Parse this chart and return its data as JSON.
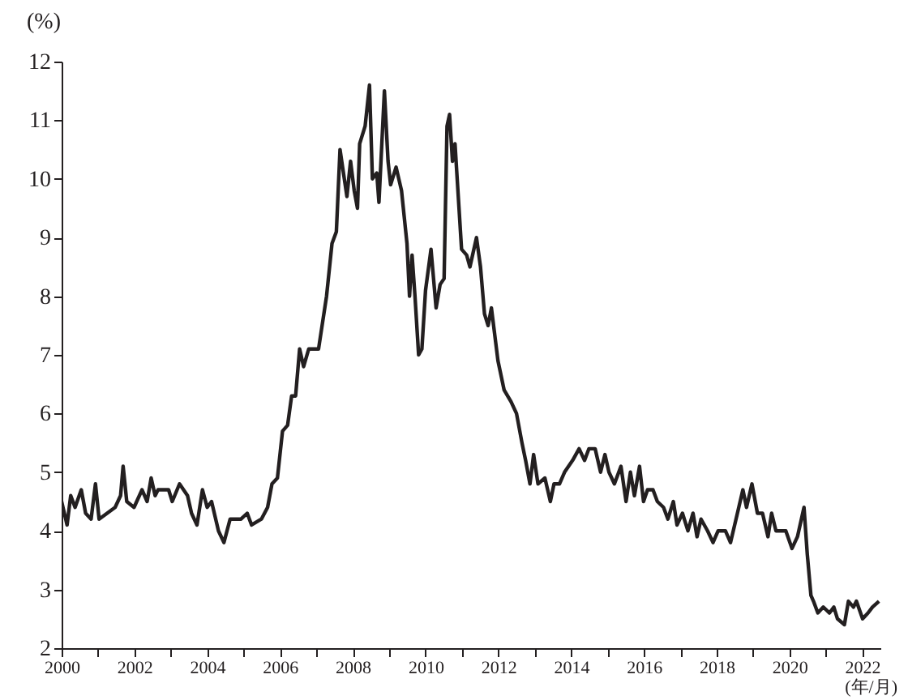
{
  "chart_data": {
    "type": "line",
    "xlabel": "(年/月)",
    "ylabel": "(%)",
    "xlim": [
      2000,
      2022.5
    ],
    "ylim": [
      2,
      12
    ],
    "xticks": [
      2000,
      {
        "value": 2001,
        "label": null
      },
      2002,
      {
        "value": 2003,
        "label": null
      },
      2004,
      {
        "value": 2005,
        "label": null
      },
      2006,
      {
        "value": 2007,
        "label": null
      },
      2008,
      {
        "value": 2009,
        "label": null
      },
      2010,
      {
        "value": 2011,
        "label": null
      },
      2012,
      {
        "value": 2013,
        "label": null
      },
      2014,
      {
        "value": 2015,
        "label": null
      },
      2016,
      {
        "value": 2017,
        "label": null
      },
      2018,
      {
        "value": 2019,
        "label": null
      },
      2020,
      {
        "value": 2021,
        "label": null
      },
      2022
    ],
    "yticks": [
      2,
      3,
      4,
      5,
      6,
      7,
      8,
      9,
      10,
      11,
      12
    ],
    "grid": false,
    "marker": "none",
    "line_style": "solid",
    "series": [
      {
        "color": "#231f20",
        "x": [
          2000.0,
          2000.15,
          2000.25,
          2000.37,
          2000.54,
          2000.66,
          2000.81,
          2000.93,
          2001.03,
          2001.25,
          2001.47,
          2001.62,
          2001.69,
          2001.79,
          2001.99,
          2002.21,
          2002.35,
          2002.46,
          2002.57,
          2002.65,
          2002.94,
          2003.04,
          2003.24,
          2003.46,
          2003.57,
          2003.72,
          2003.87,
          2004.0,
          2004.12,
          2004.31,
          2004.46,
          2004.63,
          2004.93,
          2005.1,
          2005.22,
          2005.49,
          2005.66,
          2005.78,
          2005.93,
          2006.07,
          2006.21,
          2006.32,
          2006.43,
          2006.54,
          2006.65,
          2006.79,
          2007.06,
          2007.28,
          2007.43,
          2007.55,
          2007.65,
          2007.84,
          2007.94,
          2008.04,
          2008.13,
          2008.19,
          2008.34,
          2008.46,
          2008.54,
          2008.66,
          2008.72,
          2008.87,
          2008.97,
          2009.04,
          2009.19,
          2009.34,
          2009.49,
          2009.56,
          2009.63,
          2009.71,
          2009.81,
          2009.9,
          2010.0,
          2010.15,
          2010.29,
          2010.4,
          2010.51,
          2010.59,
          2010.66,
          2010.74,
          2010.81,
          2010.99,
          2011.13,
          2011.22,
          2011.4,
          2011.51,
          2011.62,
          2011.72,
          2011.81,
          2011.99,
          2012.16,
          2012.35,
          2012.5,
          2012.65,
          2012.75,
          2012.87,
          2012.97,
          2013.09,
          2013.28,
          2013.43,
          2013.53,
          2013.68,
          2013.82,
          2014.04,
          2014.22,
          2014.37,
          2014.49,
          2014.66,
          2014.81,
          2014.93,
          2015.04,
          2015.19,
          2015.37,
          2015.51,
          2015.63,
          2015.74,
          2015.88,
          2015.99,
          2016.1,
          2016.25,
          2016.37,
          2016.54,
          2016.66,
          2016.81,
          2016.91,
          2017.06,
          2017.21,
          2017.35,
          2017.46,
          2017.57,
          2017.75,
          2017.9,
          2018.04,
          2018.24,
          2018.38,
          2018.57,
          2018.72,
          2018.82,
          2018.97,
          2019.12,
          2019.26,
          2019.41,
          2019.51,
          2019.63,
          2019.9,
          2020.07,
          2020.22,
          2020.4,
          2020.49,
          2020.59,
          2020.66,
          2020.78,
          2020.93,
          2021.1,
          2021.22,
          2021.32,
          2021.51,
          2021.62,
          2021.76,
          2021.84,
          2022.01,
          2022.16,
          2022.28,
          2022.46
        ],
        "values": [
          4.5,
          4.1,
          4.6,
          4.4,
          4.7,
          4.3,
          4.2,
          4.8,
          4.2,
          4.3,
          4.4,
          4.6,
          5.1,
          4.5,
          4.4,
          4.7,
          4.5,
          4.9,
          4.6,
          4.7,
          4.7,
          4.5,
          4.8,
          4.6,
          4.3,
          4.1,
          4.7,
          4.4,
          4.5,
          4.0,
          3.8,
          4.2,
          4.2,
          4.3,
          4.1,
          4.2,
          4.4,
          4.8,
          4.9,
          5.7,
          5.8,
          6.3,
          6.3,
          7.1,
          6.8,
          7.1,
          7.1,
          8.0,
          8.9,
          9.1,
          10.5,
          9.7,
          10.3,
          9.8,
          9.5,
          10.6,
          10.9,
          11.6,
          10.0,
          10.1,
          9.6,
          11.5,
          10.3,
          9.9,
          10.2,
          9.8,
          8.9,
          8.0,
          8.7,
          8.0,
          7.0,
          7.1,
          8.1,
          8.8,
          7.8,
          8.2,
          8.3,
          10.9,
          11.1,
          10.3,
          10.6,
          8.8,
          8.7,
          8.5,
          9.0,
          8.5,
          7.7,
          7.5,
          7.8,
          6.9,
          6.4,
          6.2,
          6.0,
          5.5,
          5.2,
          4.8,
          5.3,
          4.8,
          4.9,
          4.5,
          4.8,
          4.8,
          5.0,
          5.2,
          5.4,
          5.2,
          5.4,
          5.4,
          5.0,
          5.3,
          5.0,
          4.8,
          5.1,
          4.5,
          5.0,
          4.6,
          5.1,
          4.5,
          4.7,
          4.7,
          4.5,
          4.4,
          4.2,
          4.5,
          4.1,
          4.3,
          4.0,
          4.3,
          3.9,
          4.2,
          4.0,
          3.8,
          4.0,
          4.0,
          3.8,
          4.3,
          4.7,
          4.4,
          4.8,
          4.3,
          4.3,
          3.9,
          4.3,
          4.0,
          4.0,
          3.7,
          3.9,
          4.4,
          3.6,
          2.9,
          2.8,
          2.6,
          2.7,
          2.6,
          2.7,
          2.5,
          2.4,
          2.8,
          2.7,
          2.8,
          2.5,
          2.6,
          2.7,
          2.8
        ]
      }
    ]
  }
}
